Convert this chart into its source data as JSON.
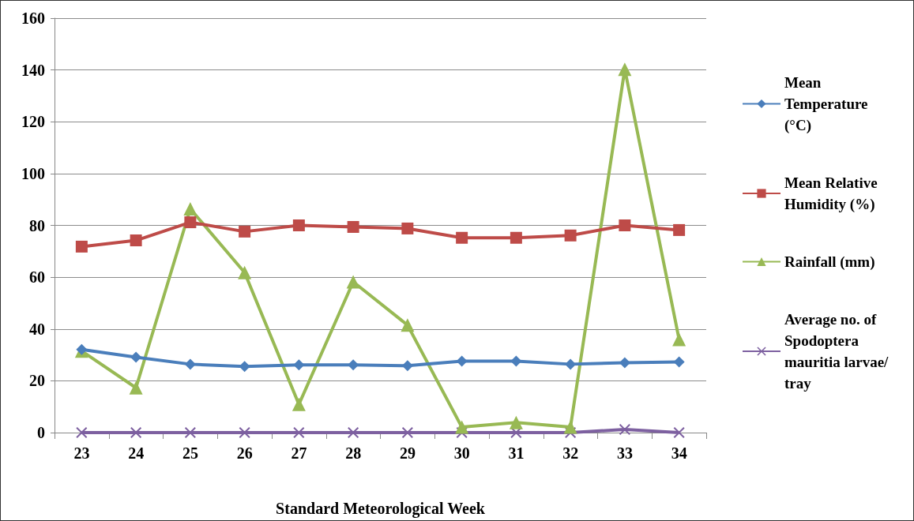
{
  "chart_data": {
    "type": "line",
    "xlabel": "Standard Meteorological Week",
    "categories": [
      "23",
      "24",
      "25",
      "26",
      "27",
      "28",
      "29",
      "30",
      "31",
      "32",
      "33",
      "34"
    ],
    "series": [
      {
        "name": "Mean Temperature (°C)",
        "color": "#4a7ebb",
        "marker": "diamond",
        "values": [
          32.1,
          29.1,
          26.4,
          25.5,
          26.1,
          26.1,
          25.8,
          27.6,
          27.6,
          26.4,
          27,
          27.3
        ]
      },
      {
        "name": "Mean Relative Humidity (%)",
        "color": "#be4b48",
        "marker": "square",
        "values": [
          71.8,
          74.2,
          81.2,
          77.6,
          80,
          79.4,
          78.8,
          75.2,
          75.2,
          76.1,
          80,
          78.2
        ]
      },
      {
        "name": "Rainfall (mm)",
        "color": "#98b954",
        "marker": "triangle",
        "values": [
          31.5,
          17.3,
          86.4,
          61.8,
          10.9,
          58.2,
          41.5,
          2.1,
          3.9,
          2.1,
          140.3,
          36
        ]
      },
      {
        "name": "Average no. of Spodoptera mauritia larvae/tray",
        "color": "#7d60a0",
        "marker": "cross",
        "values": [
          0,
          0,
          0,
          0,
          0,
          0,
          0,
          0,
          0,
          0,
          1.2,
          0
        ]
      }
    ],
    "ylim": [
      0,
      160
    ],
    "yticks": [
      0,
      20,
      40,
      60,
      80,
      100,
      120,
      140,
      160
    ],
    "grid": "y",
    "legend": "right"
  }
}
